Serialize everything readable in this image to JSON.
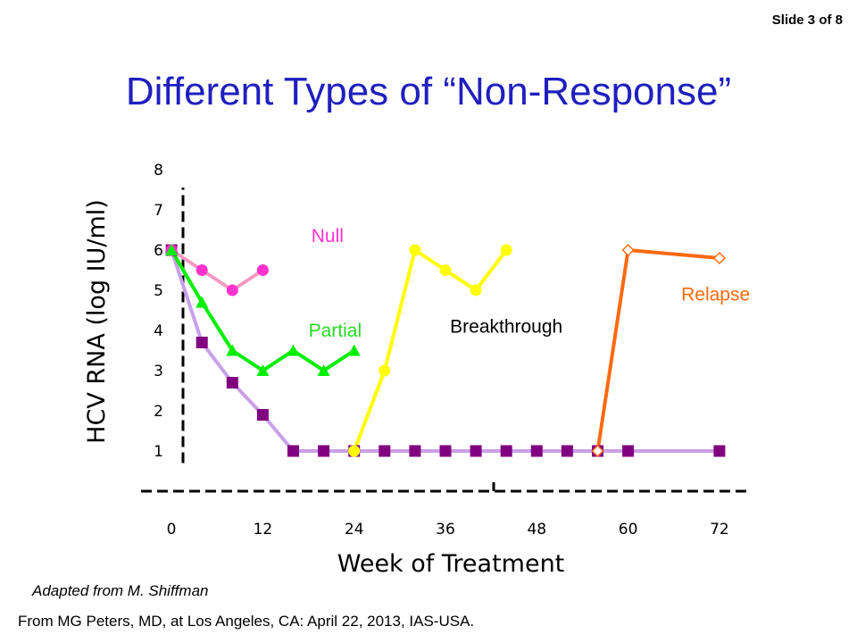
{
  "slide": {
    "number_label": "Slide 3 of 8",
    "title": "Different Types of “Non-Response”"
  },
  "footer": {
    "credit": "Adapted from M. Shiffman",
    "source": "From MG Peters, MD, at Los Angeles, CA: April 22, 2013, IAS-USA."
  },
  "chart_data": {
    "type": "line",
    "title": "",
    "xlabel": "Week of Treatment",
    "ylabel": "HCV RNA (log IU/ml)",
    "xlim": [
      -4,
      76
    ],
    "ylim": [
      0,
      8
    ],
    "xticks": [
      0,
      12,
      24,
      36,
      48,
      60,
      72
    ],
    "yticks": [
      1,
      2,
      3,
      4,
      5,
      6,
      7,
      8
    ],
    "grid": false,
    "series": [
      {
        "name": "Null",
        "color": "#f799c4",
        "marker_color": "#ff33cc",
        "marker": "circle",
        "label_color": "#ff33cc",
        "label_x": 20.5,
        "label_y": 6.2,
        "points": [
          [
            0,
            6
          ],
          [
            4,
            5.5
          ],
          [
            8,
            5
          ],
          [
            12,
            5.5
          ]
        ]
      },
      {
        "name": "Partial",
        "color": "#00ee00",
        "marker_color": "#00ee00",
        "marker": "triangle",
        "label_color": "#22dd22",
        "label_x": 21.5,
        "label_y": 3.85,
        "points": [
          [
            0,
            6
          ],
          [
            4,
            4.7
          ],
          [
            8,
            3.5
          ],
          [
            12,
            3
          ],
          [
            16,
            3.5
          ],
          [
            20,
            3
          ],
          [
            24,
            3.5
          ]
        ]
      },
      {
        "name": "Breakthrough",
        "color": "#ffff00",
        "marker_color": "#ffff00",
        "marker": "circle",
        "label_color": "#000000",
        "label_x": 44,
        "label_y": 3.95,
        "points": [
          [
            24,
            1
          ],
          [
            28,
            3
          ],
          [
            32,
            6
          ],
          [
            36,
            5.5
          ],
          [
            40,
            5
          ],
          [
            44,
            6
          ]
        ]
      },
      {
        "name": "Relapse",
        "color": "#ff6a10",
        "marker_color": "#ff6a10",
        "marker": "diamond-open",
        "label_color": "#ff6a10",
        "label_x": 71.5,
        "label_y": 4.75,
        "points": [
          [
            56,
            1
          ],
          [
            60,
            6
          ],
          [
            72,
            5.8
          ]
        ]
      },
      {
        "name": "",
        "color": "#c8a0e8",
        "marker_color": "#800080",
        "marker": "square",
        "points": [
          [
            0,
            6
          ],
          [
            4,
            3.7
          ],
          [
            8,
            2.7
          ],
          [
            12,
            1.9
          ],
          [
            16,
            1
          ],
          [
            20,
            1
          ],
          [
            24,
            1
          ],
          [
            28,
            1
          ],
          [
            32,
            1
          ],
          [
            36,
            1
          ],
          [
            40,
            1
          ],
          [
            44,
            1
          ],
          [
            48,
            1
          ],
          [
            52,
            1
          ],
          [
            56,
            1
          ],
          [
            60,
            1
          ],
          [
            72,
            1
          ]
        ]
      }
    ]
  }
}
